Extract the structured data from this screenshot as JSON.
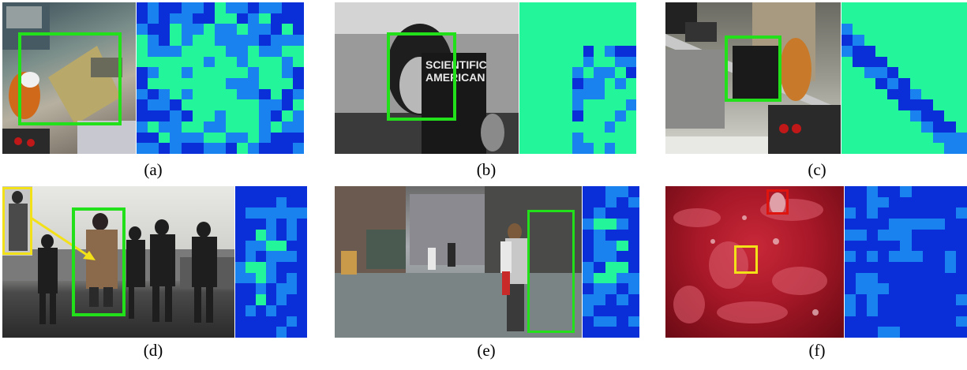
{
  "figure": {
    "panels": [
      {
        "id": "a",
        "caption": "(a)",
        "scene": "circuit-board",
        "map_bias": 0.55
      },
      {
        "id": "b",
        "caption": "(b)",
        "scene": "face-magazine",
        "map_bias": 0.85
      },
      {
        "id": "c",
        "caption": "(c)",
        "scene": "calipers-box",
        "map_bias": 0.7
      },
      {
        "id": "d",
        "caption": "(d)",
        "scene": "pedestrians",
        "map_bias": 0.3
      },
      {
        "id": "e",
        "caption": "(e)",
        "scene": "street-walker",
        "map_bias": 0.35
      },
      {
        "id": "f",
        "caption": "(f)",
        "scene": "red-water",
        "map_bias": 0.05
      }
    ],
    "magazine_text": [
      "SCIENTIFIC",
      "AMERICAN"
    ],
    "colors": {
      "map_high": "#22f59a",
      "map_mid": "#1a82ee",
      "map_low": "#0a2fd8",
      "track_box": "#22e01a",
      "aux_box_yellow": "#f2e018",
      "aux_box_red": "#e0140e"
    }
  }
}
